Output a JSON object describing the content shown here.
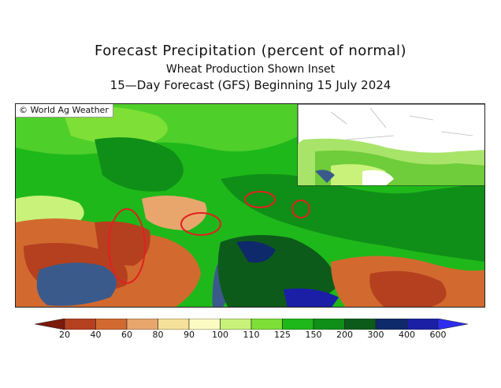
{
  "header": {
    "title": "Forecast Precipitation (percent of normal)",
    "subtitle": "Wheat Production Shown Inset",
    "period": "15—Day Forecast (GFS) Beginning 15 July 2024"
  },
  "map": {
    "credit": "© World Ag Weather",
    "inset_label": "Wheat production inset",
    "highlighted_regions": 4
  },
  "legend": {
    "labels": [
      "20",
      "40",
      "60",
      "80",
      "90",
      "100",
      "110",
      "125",
      "150",
      "200",
      "300",
      "400",
      "600"
    ],
    "colors": [
      "#7b1a0d",
      "#b5401f",
      "#d26a2f",
      "#e8a66d",
      "#f6e19a",
      "#fdfbc4",
      "#c9f27a",
      "#7ee036",
      "#1fb81a",
      "#0f8f18",
      "#0d5b1a",
      "#0f2a6a",
      "#1a1fa6",
      "#2d2df0"
    ]
  }
}
